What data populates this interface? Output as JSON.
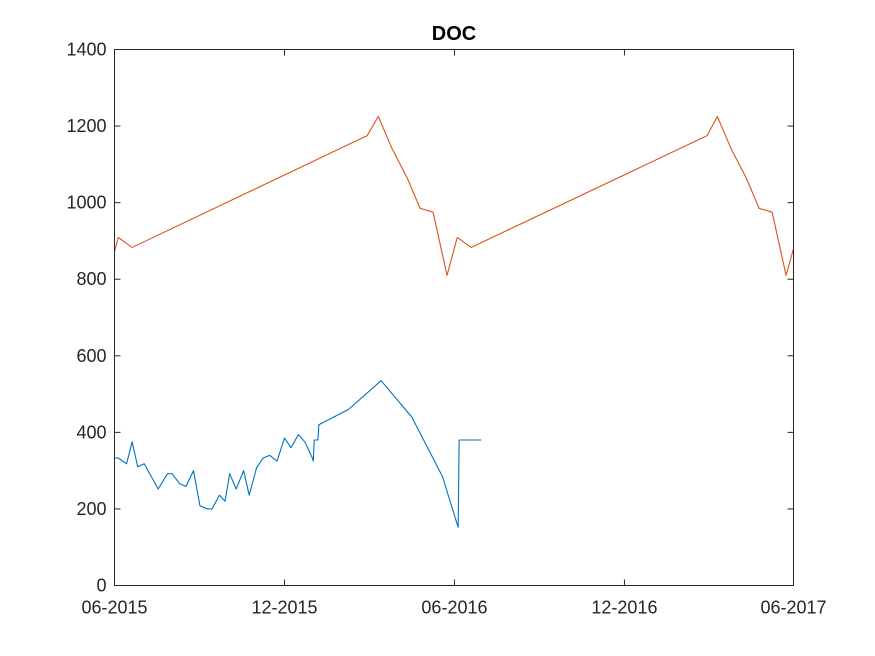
{
  "chart_data": {
    "type": "line",
    "title": "DOC",
    "xlabel": "",
    "ylabel": "",
    "grid": false,
    "legend": "none",
    "x_axis": {
      "kind": "date",
      "range": [
        "2015-06-01",
        "2017-06-01"
      ],
      "ticks": [
        {
          "date": "2015-06-01",
          "label": "06-2015"
        },
        {
          "date": "2015-12-01",
          "label": "12-2015"
        },
        {
          "date": "2016-06-01",
          "label": "06-2016"
        },
        {
          "date": "2016-12-01",
          "label": "12-2016"
        },
        {
          "date": "2017-06-01",
          "label": "06-2017"
        }
      ]
    },
    "y_axis": {
      "range": [
        0,
        1400
      ],
      "ticks": [
        0,
        200,
        400,
        600,
        800,
        1000,
        1200,
        1400
      ]
    },
    "series": [
      {
        "color": "#0072BD",
        "points": [
          [
            "2015-06-01",
            333
          ],
          [
            "2015-06-05",
            333
          ],
          [
            "2015-06-14",
            318
          ],
          [
            "2015-06-20",
            375
          ],
          [
            "2015-06-26",
            310
          ],
          [
            "2015-07-03",
            318
          ],
          [
            "2015-07-18",
            252
          ],
          [
            "2015-07-28",
            292
          ],
          [
            "2015-08-02",
            292
          ],
          [
            "2015-08-10",
            266
          ],
          [
            "2015-08-17",
            259
          ],
          [
            "2015-08-25",
            300
          ],
          [
            "2015-09-01",
            208
          ],
          [
            "2015-09-09",
            200
          ],
          [
            "2015-09-14",
            200
          ],
          [
            "2015-09-22",
            236
          ],
          [
            "2015-09-28",
            220
          ],
          [
            "2015-10-03",
            292
          ],
          [
            "2015-10-10",
            252
          ],
          [
            "2015-10-18",
            300
          ],
          [
            "2015-10-24",
            236
          ],
          [
            "2015-11-01",
            308
          ],
          [
            "2015-11-08",
            333
          ],
          [
            "2015-11-15",
            340
          ],
          [
            "2015-11-23",
            325
          ],
          [
            "2015-12-01",
            385
          ],
          [
            "2015-12-08",
            360
          ],
          [
            "2015-12-16",
            394
          ],
          [
            "2015-12-23",
            375
          ],
          [
            "2015-12-31",
            333
          ],
          [
            "2016-01-01",
            325
          ],
          [
            "2016-01-02",
            380
          ],
          [
            "2016-01-06",
            380
          ],
          [
            "2016-01-07",
            420
          ],
          [
            "2016-02-08",
            460
          ],
          [
            "2016-03-14",
            535
          ],
          [
            "2016-04-16",
            440
          ],
          [
            "2016-05-19",
            285
          ],
          [
            "2016-06-05",
            152
          ],
          [
            "2016-06-06",
            380
          ],
          [
            "2016-06-30",
            380
          ]
        ]
      },
      {
        "color": "#D95319",
        "points": [
          [
            "2015-06-01",
            872
          ],
          [
            "2015-06-05",
            909
          ],
          [
            "2015-06-20",
            883
          ],
          [
            "2016-02-28",
            1175
          ],
          [
            "2016-03-11",
            1225
          ],
          [
            "2016-03-26",
            1140
          ],
          [
            "2016-04-11",
            1065
          ],
          [
            "2016-04-25",
            985
          ],
          [
            "2016-05-09",
            975
          ],
          [
            "2016-05-24",
            810
          ],
          [
            "2016-06-04",
            909
          ],
          [
            "2016-06-19",
            883
          ],
          [
            "2017-02-28",
            1175
          ],
          [
            "2017-03-11",
            1225
          ],
          [
            "2017-03-26",
            1140
          ],
          [
            "2017-04-11",
            1065
          ],
          [
            "2017-04-25",
            985
          ],
          [
            "2017-05-09",
            975
          ],
          [
            "2017-05-24",
            810
          ],
          [
            "2017-06-01",
            880
          ]
        ]
      }
    ]
  }
}
